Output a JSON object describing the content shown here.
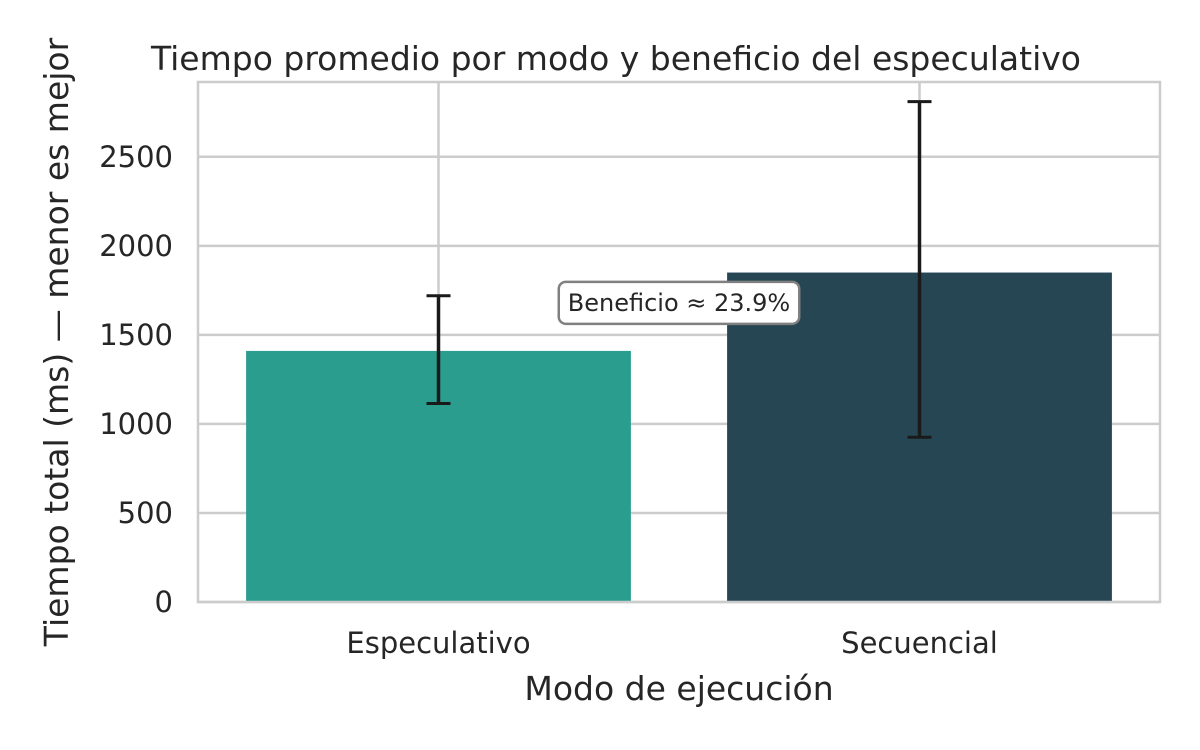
{
  "chart_data": {
    "type": "bar",
    "title": "Tiempo promedio por modo y beneficio del especulativo",
    "xlabel": "Modo de ejecución",
    "ylabel": "Tiempo total (ms) — menor es mejor",
    "categories": [
      "Especulativo",
      "Secuencial"
    ],
    "values": [
      1410,
      1850
    ],
    "error_low": [
      1115,
      925
    ],
    "error_high": [
      1720,
      2810
    ],
    "colors": [
      "#2a9d8f",
      "#264653"
    ],
    "ylim": [
      0,
      2920
    ],
    "yticks": [
      0,
      500,
      1000,
      1500,
      2000,
      2500
    ],
    "grid": true,
    "annotation": {
      "text": "Beneficio ≈ 23.9%",
      "x": 0.5,
      "y": 1680
    }
  }
}
